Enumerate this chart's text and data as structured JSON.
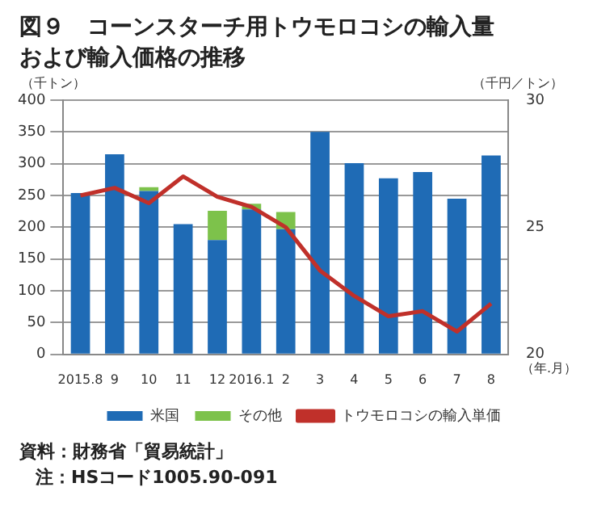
{
  "chart_data": {
    "type": "bar",
    "title": "図９　コーンスターチ用トウモロコシの輸入量および輸入価格の推移",
    "categories": [
      "2015.8",
      "9",
      "10",
      "11",
      "12",
      "2016.1",
      "2",
      "3",
      "4",
      "5",
      "6",
      "7",
      "8"
    ],
    "stacked": true,
    "series": [
      {
        "name": "米国",
        "color": "#1f6bb5",
        "values": [
          254,
          315,
          257,
          205,
          180,
          228,
          197,
          350,
          301,
          277,
          287,
          245,
          313
        ]
      },
      {
        "name": "その他",
        "color": "#7dc24b",
        "values": [
          0,
          0,
          6,
          0,
          46,
          9,
          27,
          0,
          0,
          0,
          0,
          0,
          0
        ]
      },
      {
        "name": "トウモロコシの輸入単価",
        "type": "line",
        "axis": "y2",
        "color": "#c0302a",
        "values": [
          26.25,
          26.55,
          25.95,
          27.0,
          26.2,
          25.8,
          25.0,
          23.3,
          22.3,
          21.5,
          21.7,
          20.9,
          22.0
        ]
      }
    ],
    "ylim": [
      0,
      400
    ],
    "yticks": [
      0,
      50,
      100,
      150,
      200,
      250,
      300,
      350,
      400
    ],
    "y2lim": [
      20,
      30
    ],
    "y2ticks": [
      20,
      25,
      30
    ],
    "ylabel": "（千トン）",
    "y2label": "（千円／トン）",
    "xlabel": "（年.月）",
    "grid": "y",
    "legend": "bottom",
    "marker": "none",
    "annotations": [
      "資料：財務省「貿易統計」",
      "注：HSコード1005.90-091"
    ]
  }
}
